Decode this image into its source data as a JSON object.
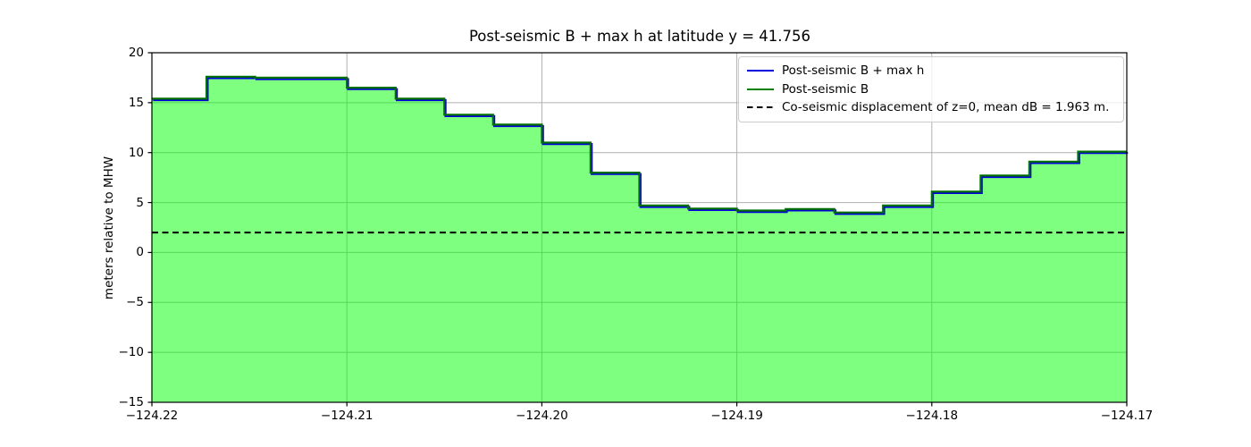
{
  "title": "Post-seismic B + max h at latitude y = 41.756",
  "axes": {
    "ylabel": "meters relative to MHW",
    "xtick_values": [
      -124.22,
      -124.21,
      -124.2,
      -124.19,
      -124.18,
      -124.17
    ],
    "xtick_labels": [
      "−124.22",
      "−124.21",
      "−124.20",
      "−124.19",
      "−124.18",
      "−124.17"
    ],
    "ytick_values": [
      20,
      15,
      10,
      5,
      0,
      -5,
      -10,
      -15
    ],
    "ytick_labels": [
      "20",
      "15",
      "10",
      "5",
      "0",
      "−5",
      "−10",
      "−15"
    ]
  },
  "legend": {
    "entries": [
      {
        "label": "Post-seismic B + max h",
        "color": "#0000dd",
        "dash": false
      },
      {
        "label": "Post-seismic B",
        "color": "#008000",
        "dash": false
      },
      {
        "label": "Co-seismic displacement of z=0, mean dB = 1.963 m.",
        "color": "#000000",
        "dash": true
      }
    ]
  },
  "chart_data": {
    "type": "area",
    "title": "Post-seismic B + max h at latitude y = 41.756",
    "xlabel": "",
    "ylabel": "meters relative to MHW",
    "xlim": [
      -124.22,
      -124.17
    ],
    "ylim": [
      -15,
      20
    ],
    "grid": true,
    "legend_position": "upper right",
    "step_edges_x": [
      -124.22,
      -124.2172,
      -124.2147,
      -124.21,
      -124.2075,
      -124.205,
      -124.2025,
      -124.2,
      -124.1975,
      -124.195,
      -124.1925,
      -124.19,
      -124.1875,
      -124.185,
      -124.1825,
      -124.18,
      -124.1775,
      -124.175,
      -124.1725,
      -124.17
    ],
    "series": [
      {
        "name": "Post-seismic B + max h",
        "type": "step",
        "color": "#0000dd",
        "line_width": 2.2,
        "values": [
          15.4,
          17.6,
          17.5,
          16.5,
          15.4,
          13.8,
          12.8,
          11.0,
          8.0,
          4.7,
          4.4,
          4.2,
          4.35,
          4.0,
          4.7,
          6.1,
          7.7,
          9.1,
          10.1
        ]
      },
      {
        "name": "Post-seismic B",
        "type": "step",
        "color": "#007000",
        "line_width": 2.2,
        "fill_color": "#00ff00",
        "fill_alpha": 0.5,
        "values": [
          15.4,
          17.6,
          17.5,
          16.5,
          15.4,
          13.8,
          12.8,
          11.0,
          8.0,
          4.7,
          4.4,
          4.2,
          4.35,
          4.0,
          4.7,
          6.1,
          7.7,
          9.1,
          10.1
        ]
      },
      {
        "name": "Co-seismic displacement of z=0, mean dB = 1.963 m.",
        "type": "hline",
        "color": "#000000",
        "line_width": 2,
        "dash": [
          7,
          4.5
        ],
        "value": 2.0
      }
    ],
    "grid_color": "#b0b0b0",
    "spine_color": "#000000"
  }
}
